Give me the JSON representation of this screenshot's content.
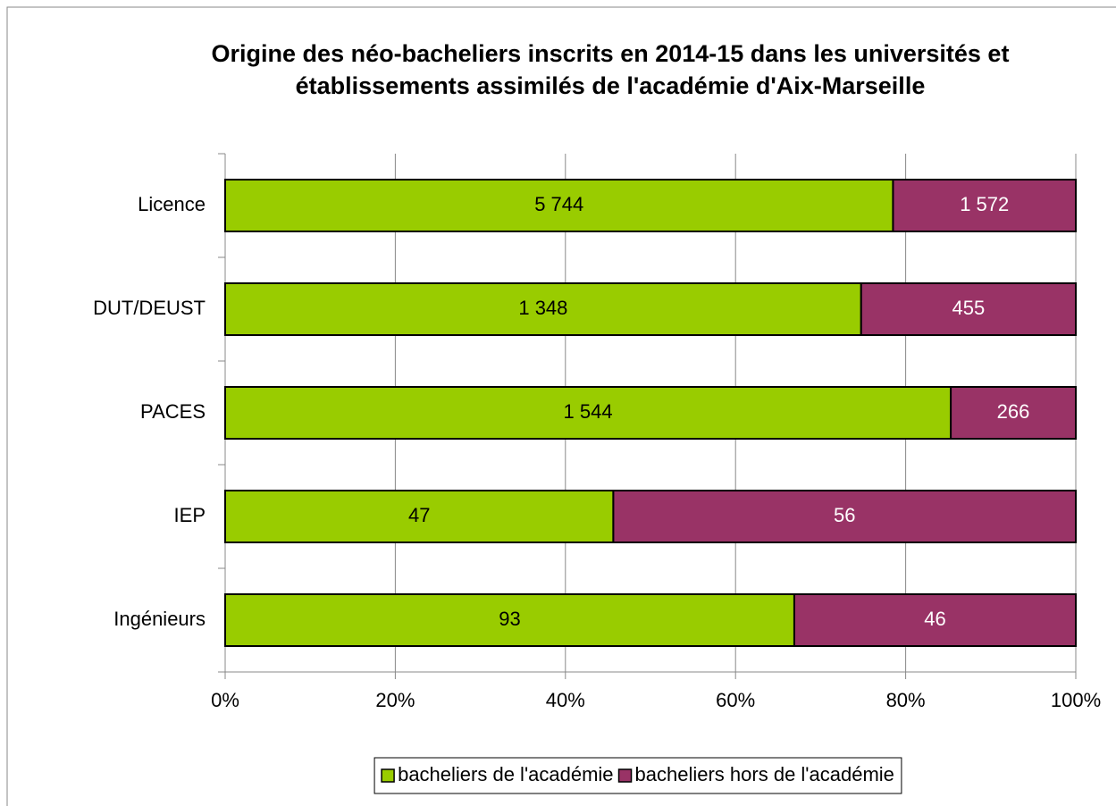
{
  "chart_data": {
    "type": "bar",
    "orientation": "horizontal",
    "stack": "percent",
    "title": [
      "Origine des néo-bacheliers inscrits en 2014-15 dans les universités et",
      "établissements assimilés de l'académie d'Aix-Marseille"
    ],
    "categories": [
      "Licence",
      "DUT/DEUST",
      "PACES",
      "IEP",
      "Ingénieurs"
    ],
    "series": [
      {
        "name": "bacheliers de l'académie",
        "color": "#99cc00",
        "label_color": "#000000",
        "values": [
          5744,
          1348,
          1544,
          47,
          93
        ],
        "value_labels": [
          "5 744",
          "1 348",
          "1 544",
          "47",
          "93"
        ]
      },
      {
        "name": "bacheliers hors de l'académie",
        "color": "#993366",
        "label_color": "#ffffff",
        "values": [
          1572,
          455,
          266,
          56,
          46
        ],
        "value_labels": [
          "1 572",
          "455",
          "266",
          "56",
          "46"
        ]
      }
    ],
    "xlim": [
      0,
      100
    ],
    "xticks": [
      {
        "value": 0,
        "label": "0%"
      },
      {
        "value": 20,
        "label": "20%"
      },
      {
        "value": 40,
        "label": "40%"
      },
      {
        "value": 60,
        "label": "60%"
      },
      {
        "value": 80,
        "label": "80%"
      },
      {
        "value": 100,
        "label": "100%"
      }
    ],
    "grid": true,
    "legend": "bottom"
  }
}
